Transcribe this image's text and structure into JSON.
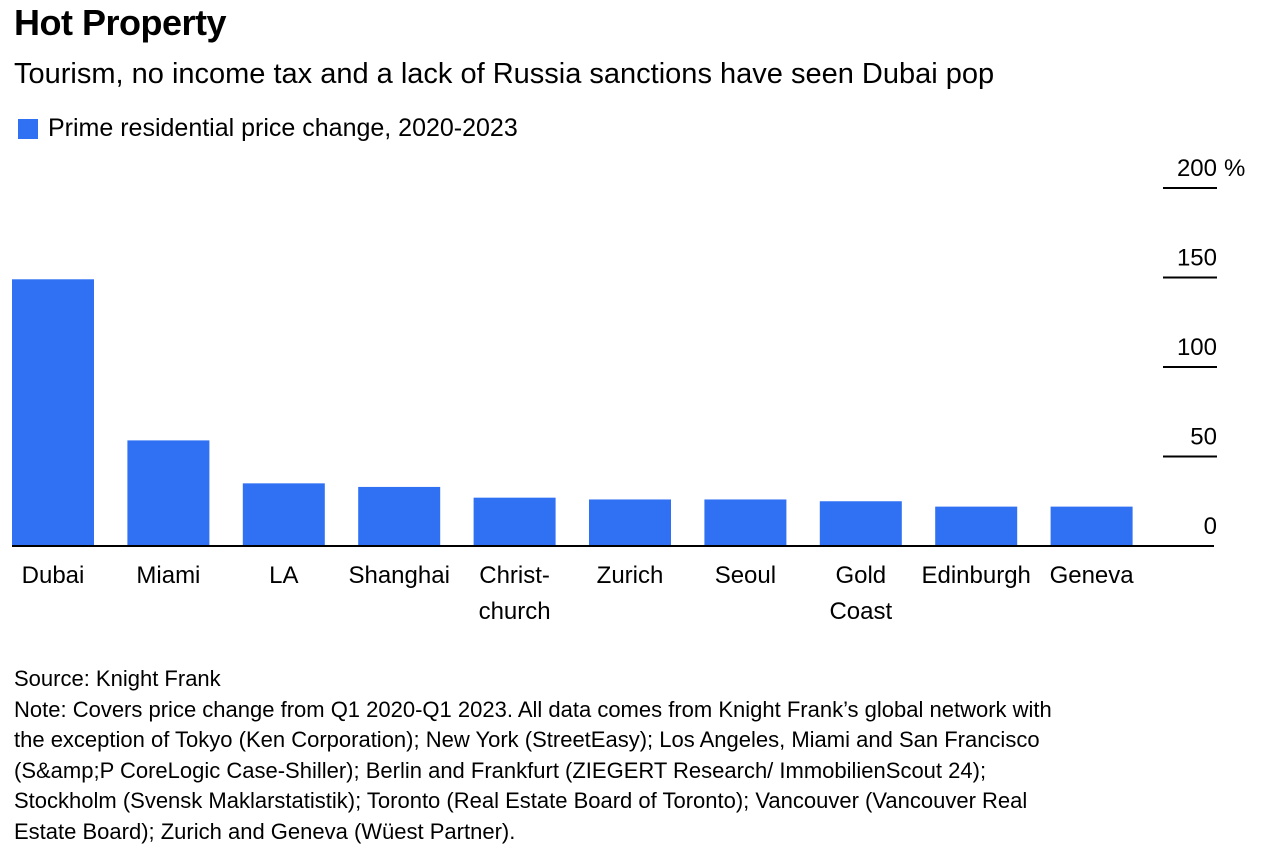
{
  "title": "Hot Property",
  "subtitle": "Tourism, no income tax and a lack of Russia sanctions have seen Dubai pop",
  "legend_label": "Prime residential price change, 2020-2023",
  "colors": {
    "bar": "#3071f4",
    "axis": "#000000"
  },
  "chart_data": {
    "type": "bar",
    "title": "Hot Property",
    "xlabel": "",
    "ylabel": "",
    "ylim": [
      0,
      200
    ],
    "y_unit": "%",
    "yticks": [
      0,
      50,
      100,
      150,
      200
    ],
    "ytick_labels": [
      "0",
      "50",
      "100",
      "150",
      "200 %"
    ],
    "categories": [
      [
        "Dubai"
      ],
      [
        "Miami"
      ],
      [
        "LA"
      ],
      [
        "Shanghai"
      ],
      [
        "Christ-",
        "church"
      ],
      [
        "Zurich"
      ],
      [
        "Seoul"
      ],
      [
        "Gold",
        "Coast"
      ],
      [
        "Edinburgh"
      ],
      [
        "Geneva"
      ]
    ],
    "series": [
      {
        "name": "Prime residential price change, 2020-2023",
        "values": [
          149,
          59,
          35,
          33,
          27,
          26,
          26,
          25,
          22,
          22
        ]
      }
    ],
    "grid": true,
    "legend": "top-left"
  },
  "source": "Source: Knight Frank",
  "note_lines": [
    "Note: Covers price change from Q1 2020-Q1 2023. All data comes from Knight Frank’s global network with",
    "the exception of Tokyo (Ken Corporation); New York (StreetEasy); Los Angeles, Miami and San Francisco",
    "(S&amp;P CoreLogic Case-Shiller); Berlin and Frankfurt (ZIEGERT Research/ ImmobilienScout 24);",
    "Stockholm (Svensk Maklarstatistik); Toronto (Real Estate Board of Toronto); Vancouver (Vancouver Real",
    "Estate Board); Zurich and Geneva (Wüest Partner)."
  ]
}
